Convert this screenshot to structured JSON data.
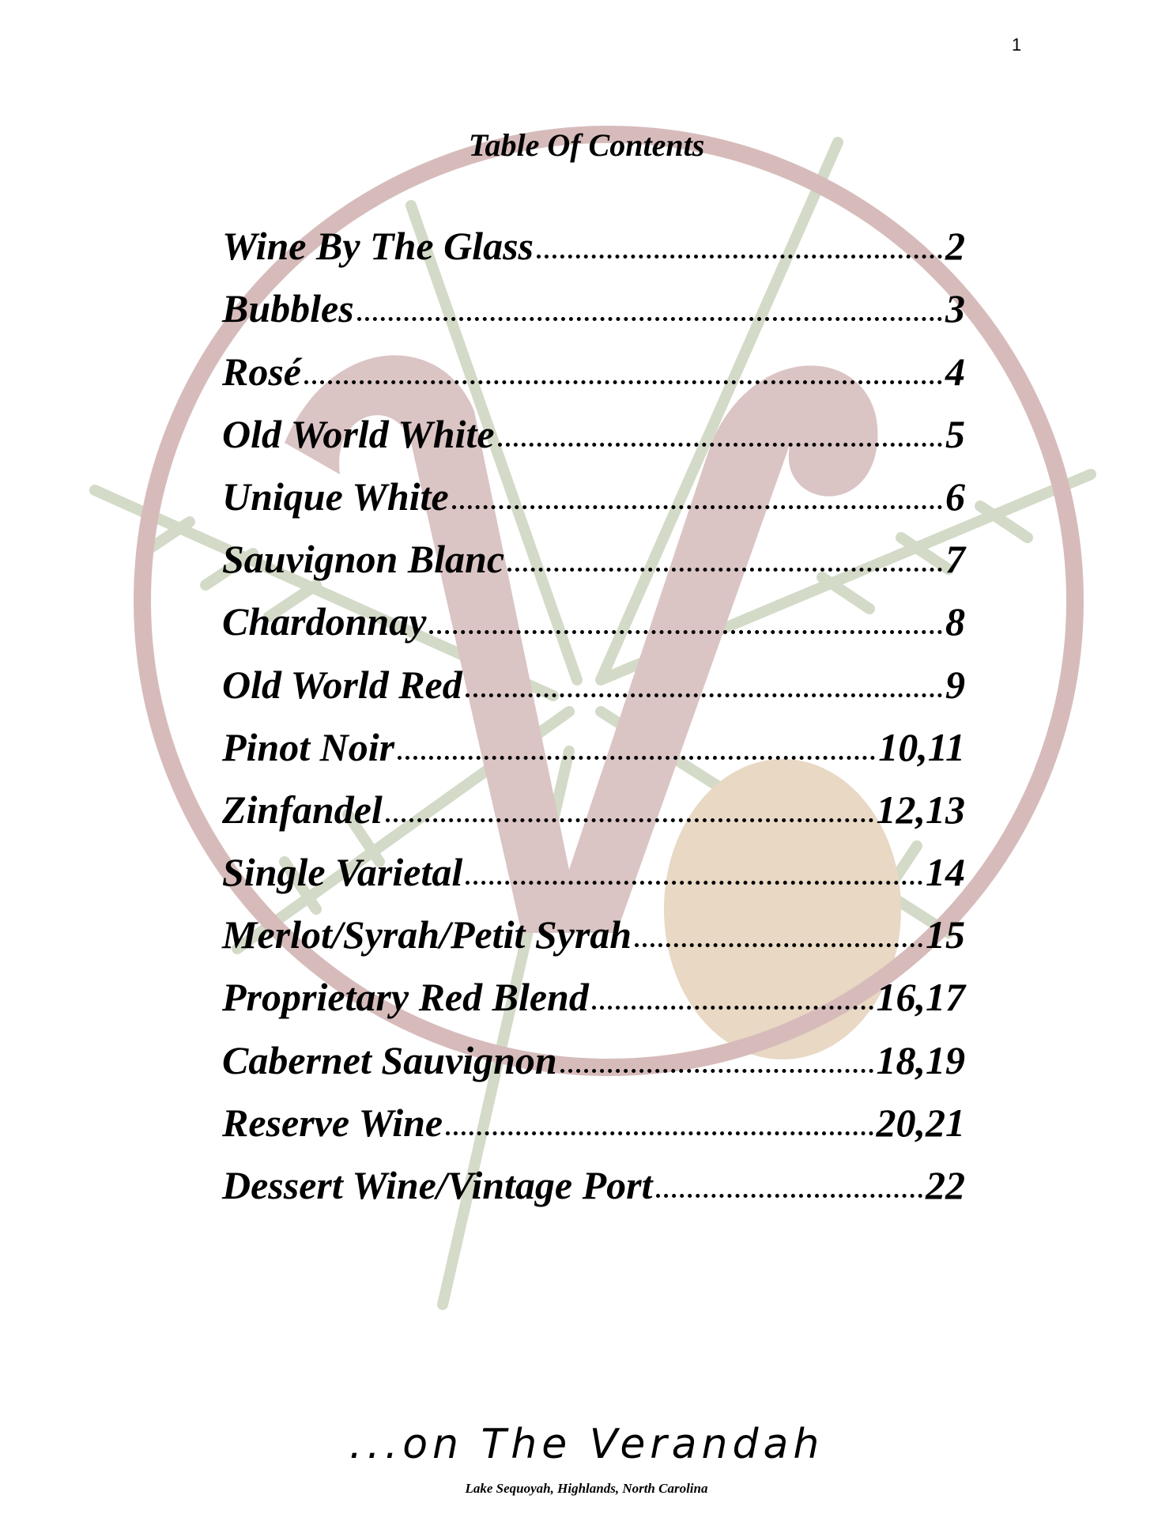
{
  "page_number": "1",
  "title": "Table Of Contents",
  "entries": [
    {
      "label": "Wine By The Glass",
      "page": "2"
    },
    {
      "label": "Bubbles",
      "page": "3"
    },
    {
      "label": "Rosé",
      "page": "4"
    },
    {
      "label": "Old World White",
      "page": "5"
    },
    {
      "label": "Unique White",
      "page": "6"
    },
    {
      "label": "Sauvignon Blanc",
      "page": "7"
    },
    {
      "label": "Chardonnay",
      "page": "8"
    },
    {
      "label": "Old World Red",
      "page": "9"
    },
    {
      "label": "Pinot Noir",
      "page": "10,11"
    },
    {
      "label": "Zinfandel",
      "page": "12,13"
    },
    {
      "label": "Single Varietal",
      "page": "14"
    },
    {
      "label": "Merlot/Syrah/Petit Syrah",
      "page": "15"
    },
    {
      "label": "Proprietary Red Blend",
      "page": "16,17"
    },
    {
      "label": "Cabernet Sauvignon",
      "page": "18,19"
    },
    {
      "label": "Reserve Wine",
      "page": "20,21"
    },
    {
      "label": "Dessert Wine/Vintage Port",
      "page": "22"
    }
  ],
  "footer": {
    "brand": "...on The Verandah",
    "location": "Lake Sequoyah, Highlands, North Carolina"
  },
  "colors": {
    "watermark_ring": "#c9a3a3",
    "watermark_pine": "#c7d0b8",
    "watermark_cone": "#d9c3a8"
  }
}
